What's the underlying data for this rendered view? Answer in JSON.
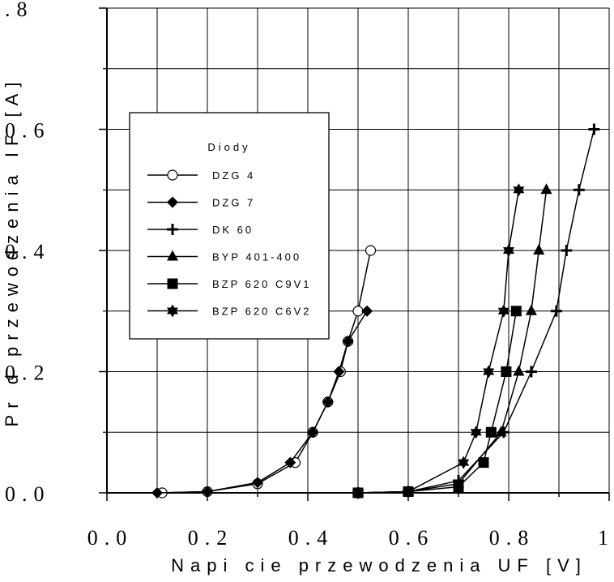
{
  "chart_data": {
    "type": "line",
    "xlabel": "Napi cie przewodzenia UF [V]",
    "ylabel": "Pr d przewodzenia IF [A]",
    "xlim": [
      0.0,
      1.0
    ],
    "ylim": [
      0.0,
      0.8
    ],
    "x_ticks": [
      0.0,
      0.2,
      0.4,
      0.6,
      0.8,
      1.0
    ],
    "x_tick_labels": [
      "0.0",
      "0.2",
      "0.4",
      "0.6",
      "0.8",
      "1."
    ],
    "y_ticks": [
      0.0,
      0.2,
      0.4,
      0.6,
      0.8
    ],
    "y_tick_labels": [
      "0.0",
      "0.2",
      "0.4",
      "0.6",
      ".8"
    ],
    "grid": true,
    "legend": {
      "title": "Diody",
      "placement": "upper-left"
    },
    "series": [
      {
        "name": "DZG 4",
        "marker": "open-circle",
        "x": [
          0.11,
          0.2,
          0.3,
          0.375,
          0.41,
          0.44,
          0.465,
          0.48,
          0.5,
          0.525
        ],
        "y": [
          0.0,
          0.002,
          0.015,
          0.05,
          0.1,
          0.15,
          0.2,
          0.25,
          0.3,
          0.4
        ]
      },
      {
        "name": "DZG 7",
        "marker": "diamond",
        "x": [
          0.1,
          0.2,
          0.3,
          0.365,
          0.41,
          0.44,
          0.462,
          0.48,
          0.518
        ],
        "y": [
          0.0,
          0.002,
          0.017,
          0.05,
          0.1,
          0.15,
          0.2,
          0.25,
          0.3
        ]
      },
      {
        "name": "DK 60",
        "marker": "plus",
        "x": [
          0.5,
          0.6,
          0.7,
          0.79,
          0.845,
          0.895,
          0.915,
          0.94,
          0.97
        ],
        "y": [
          0.0,
          0.002,
          0.02,
          0.1,
          0.2,
          0.3,
          0.4,
          0.5,
          0.6
        ]
      },
      {
        "name": "BYP 401-400",
        "marker": "triangle",
        "x": [
          0.5,
          0.6,
          0.7,
          0.785,
          0.82,
          0.845,
          0.86,
          0.875
        ],
        "y": [
          0.0,
          0.002,
          0.015,
          0.1,
          0.2,
          0.3,
          0.4,
          0.5
        ]
      },
      {
        "name": "BZP 620 C9V1",
        "marker": "square",
        "x": [
          0.5,
          0.6,
          0.7,
          0.75,
          0.765,
          0.795,
          0.815
        ],
        "y": [
          0.0,
          0.002,
          0.01,
          0.05,
          0.1,
          0.2,
          0.3
        ]
      },
      {
        "name": "BZP 620 C6V2",
        "marker": "star",
        "x": [
          0.5,
          0.6,
          0.71,
          0.735,
          0.76,
          0.79,
          0.8,
          0.82
        ],
        "y": [
          0.0,
          0.002,
          0.05,
          0.1,
          0.2,
          0.3,
          0.4,
          0.5
        ]
      }
    ]
  }
}
